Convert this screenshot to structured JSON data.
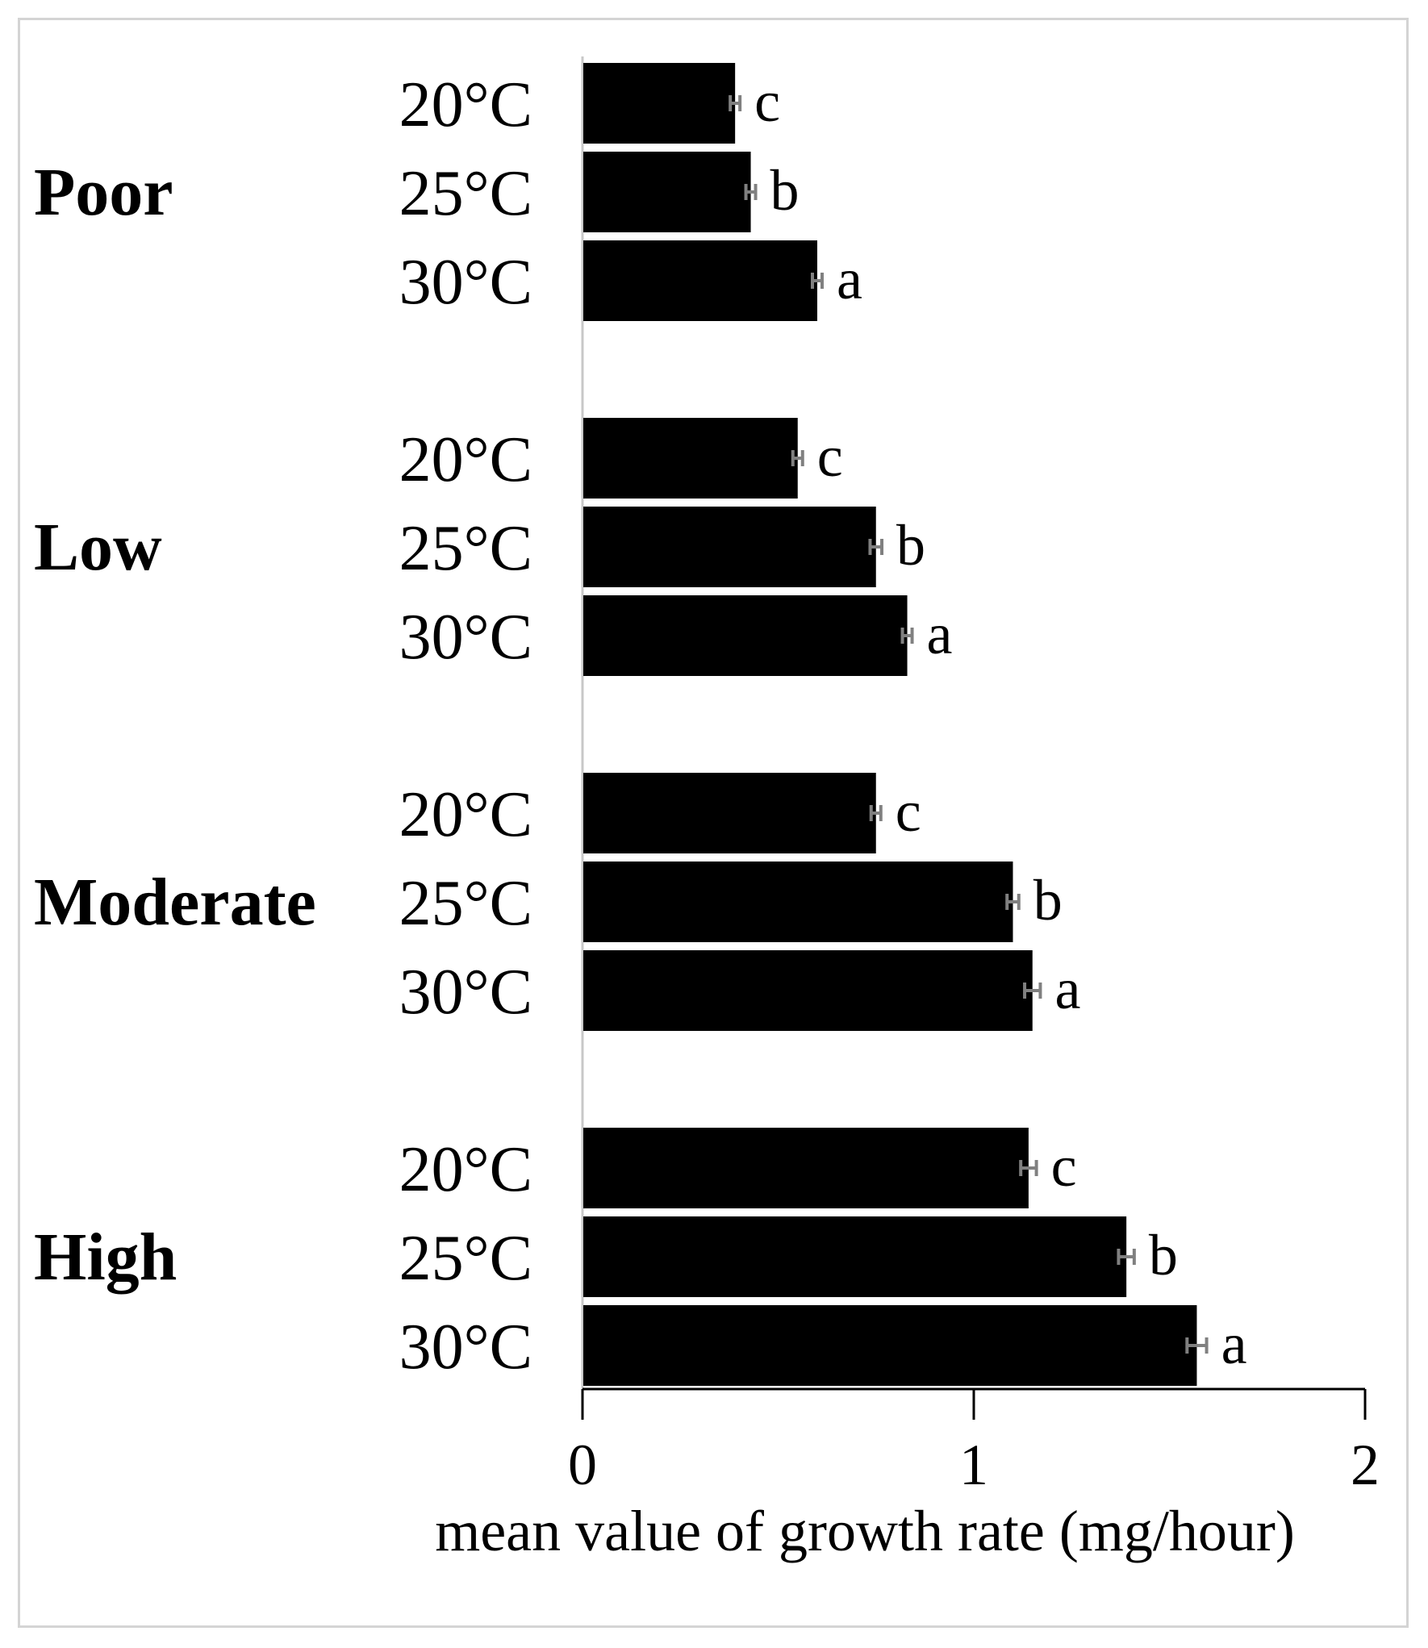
{
  "chart_data": {
    "type": "bar",
    "orientation": "horizontal",
    "groups": [
      {
        "name": "Poor",
        "bars": [
          {
            "label": "20°C",
            "value": 0.39,
            "error": 0.01,
            "sig": "c"
          },
          {
            "label": "25°C",
            "value": 0.43,
            "error": 0.01,
            "sig": "b"
          },
          {
            "label": "30°C",
            "value": 0.6,
            "error": 0.01,
            "sig": "a"
          }
        ]
      },
      {
        "name": "Low",
        "bars": [
          {
            "label": "20°C",
            "value": 0.55,
            "error": 0.01,
            "sig": "c"
          },
          {
            "label": "25°C",
            "value": 0.75,
            "error": 0.015,
            "sig": "b"
          },
          {
            "label": "30°C",
            "value": 0.83,
            "error": 0.01,
            "sig": "a"
          }
        ]
      },
      {
        "name": "Moderate",
        "bars": [
          {
            "label": "20°C",
            "value": 0.75,
            "error": 0.01,
            "sig": "c"
          },
          {
            "label": "25°C",
            "value": 1.1,
            "error": 0.015,
            "sig": "b"
          },
          {
            "label": "30°C",
            "value": 1.15,
            "error": 0.02,
            "sig": "a"
          }
        ]
      },
      {
        "name": "High",
        "bars": [
          {
            "label": "20°C",
            "value": 1.14,
            "error": 0.02,
            "sig": "c"
          },
          {
            "label": "25°C",
            "value": 1.39,
            "error": 0.02,
            "sig": "b"
          },
          {
            "label": "30°C",
            "value": 1.57,
            "error": 0.025,
            "sig": "a"
          }
        ]
      }
    ],
    "xlabel": "mean value of growth rate (mg/hour)",
    "ylabel": "",
    "title": "",
    "xlim": [
      0,
      2
    ],
    "xticks": [
      "0",
      "1",
      "2"
    ],
    "grid": false,
    "legend": "none",
    "colors": {
      "bar": "#000000",
      "error_bar": "#808080",
      "axis": "#000000",
      "category_axis": "#c8c8c8"
    }
  }
}
